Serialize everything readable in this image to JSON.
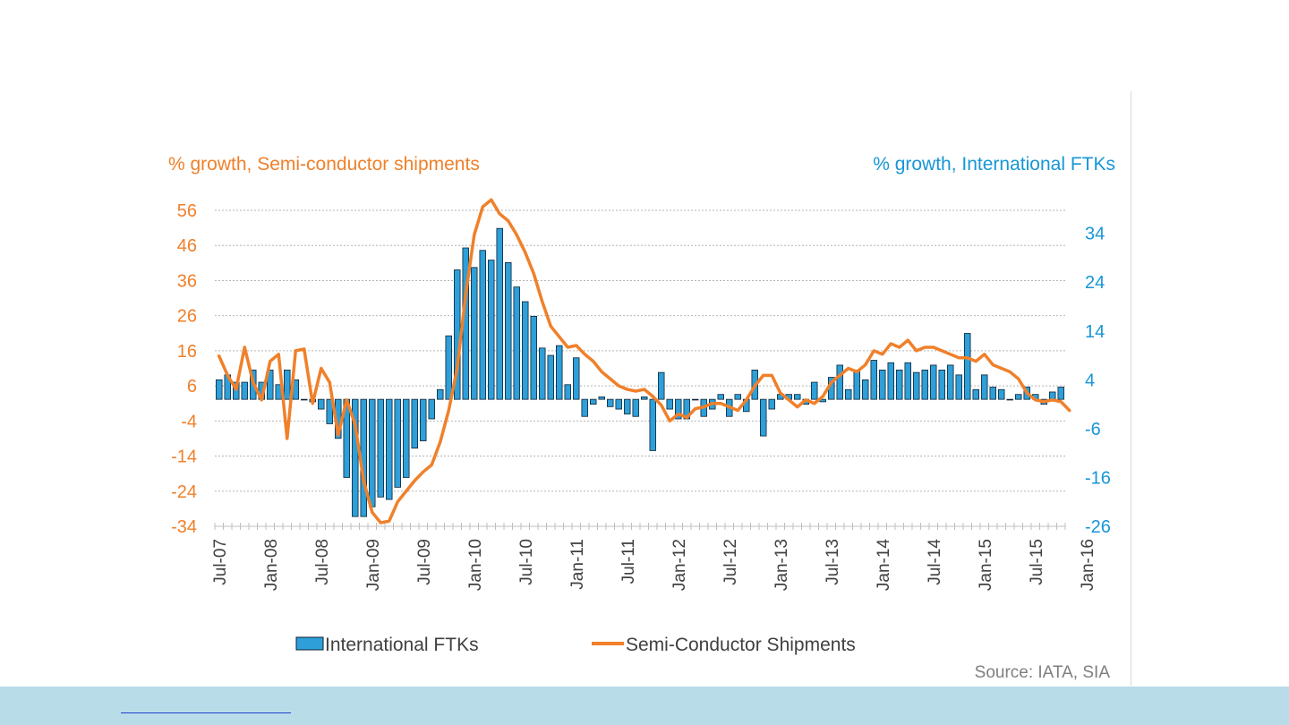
{
  "chart_data": {
    "type": "bar+line",
    "left_axis_title": "% growth, Semi-conductor shipments",
    "right_axis_title": "% growth, International FTKs",
    "left_ticks": [
      56,
      46,
      36,
      26,
      16,
      6,
      -4,
      -14,
      -24,
      -34
    ],
    "right_ticks": [
      34,
      24,
      14,
      4,
      -6,
      -16,
      -26
    ],
    "left_range": [
      -34,
      56
    ],
    "right_range": [
      -26,
      38.7
    ],
    "x_tick_labels": [
      "Jul-07",
      "Jan-08",
      "Jul-08",
      "Jan-09",
      "Jul-09",
      "Jan-10",
      "Jul-10",
      "Jan-11",
      "Jul-11",
      "Jan-12",
      "Jul-12",
      "Jan-13",
      "Jul-13",
      "Jan-14",
      "Jul-14",
      "Jan-15",
      "Jul-15",
      "Jan-16"
    ],
    "months_start": "Jul-07",
    "series": [
      {
        "name": "International FTKs",
        "type": "bar",
        "axis": "right",
        "values": [
          4,
          5,
          3.5,
          3.5,
          6,
          3.5,
          6,
          3,
          6,
          4,
          0,
          -0.5,
          -2,
          -5,
          -8,
          -16,
          -24,
          -24,
          -22,
          -20,
          -20.5,
          -18,
          -16,
          -10,
          -8.5,
          -4,
          2,
          13,
          26.5,
          31,
          27,
          30.5,
          28.5,
          35,
          28,
          23,
          20,
          17,
          10.5,
          9,
          11,
          3,
          8.5,
          -3.5,
          -1,
          0.5,
          -1.5,
          -2,
          -3,
          -3.5,
          0.5,
          -10.5,
          5.5,
          -2,
          -4,
          -4,
          0,
          -3.5,
          -2,
          1,
          -3.5,
          1,
          -2.5,
          6,
          -7.5,
          -2,
          1,
          1,
          1,
          -1,
          3.5,
          -0.5,
          4.5,
          7,
          2,
          6,
          4,
          8,
          6,
          7.5,
          6,
          7.5,
          5.5,
          6,
          7,
          6,
          7,
          5,
          13.5,
          2,
          5,
          2.5,
          2,
          0,
          1,
          2.5,
          1,
          -1,
          1.5,
          2.5
        ]
      },
      {
        "name": "Semi-Conductor Shipments",
        "type": "line",
        "axis": "left",
        "values": [
          14.5,
          9,
          5,
          17,
          7,
          2,
          13,
          15,
          -9,
          16,
          16.5,
          1,
          11,
          7,
          -8,
          2,
          -5,
          -21,
          -30,
          -33,
          -32.5,
          -27,
          -24,
          -21,
          -18.5,
          -16.5,
          -10,
          -1,
          11,
          32,
          49,
          57,
          59,
          55,
          53,
          49,
          44,
          38,
          30,
          23,
          20,
          17,
          17.5,
          15,
          13,
          10,
          8,
          6,
          5,
          4.5,
          5,
          3,
          0.5,
          -4,
          -2,
          -3,
          -0.5,
          0,
          1,
          1,
          0,
          -1,
          2,
          6,
          9,
          9,
          4,
          2,
          0,
          2,
          1,
          3,
          7,
          9,
          11,
          10,
          12,
          16,
          15,
          18,
          17,
          19,
          16,
          17,
          17,
          16,
          15,
          14,
          14,
          13,
          15,
          12,
          11,
          10,
          8,
          4,
          2,
          1.5,
          2,
          1.5,
          -1
        ]
      }
    ],
    "legend": "bottom",
    "gridlines": true
  },
  "source": "Source: IATA, SIA",
  "colors": {
    "bar_fill": "#2e9fd8",
    "bar_stroke": "#0d2233",
    "line": "#f0802a",
    "left_axis": "#f0802a",
    "right_axis": "#1796d6",
    "grid": "#b5b5b5",
    "footer": "#b9dde8"
  }
}
